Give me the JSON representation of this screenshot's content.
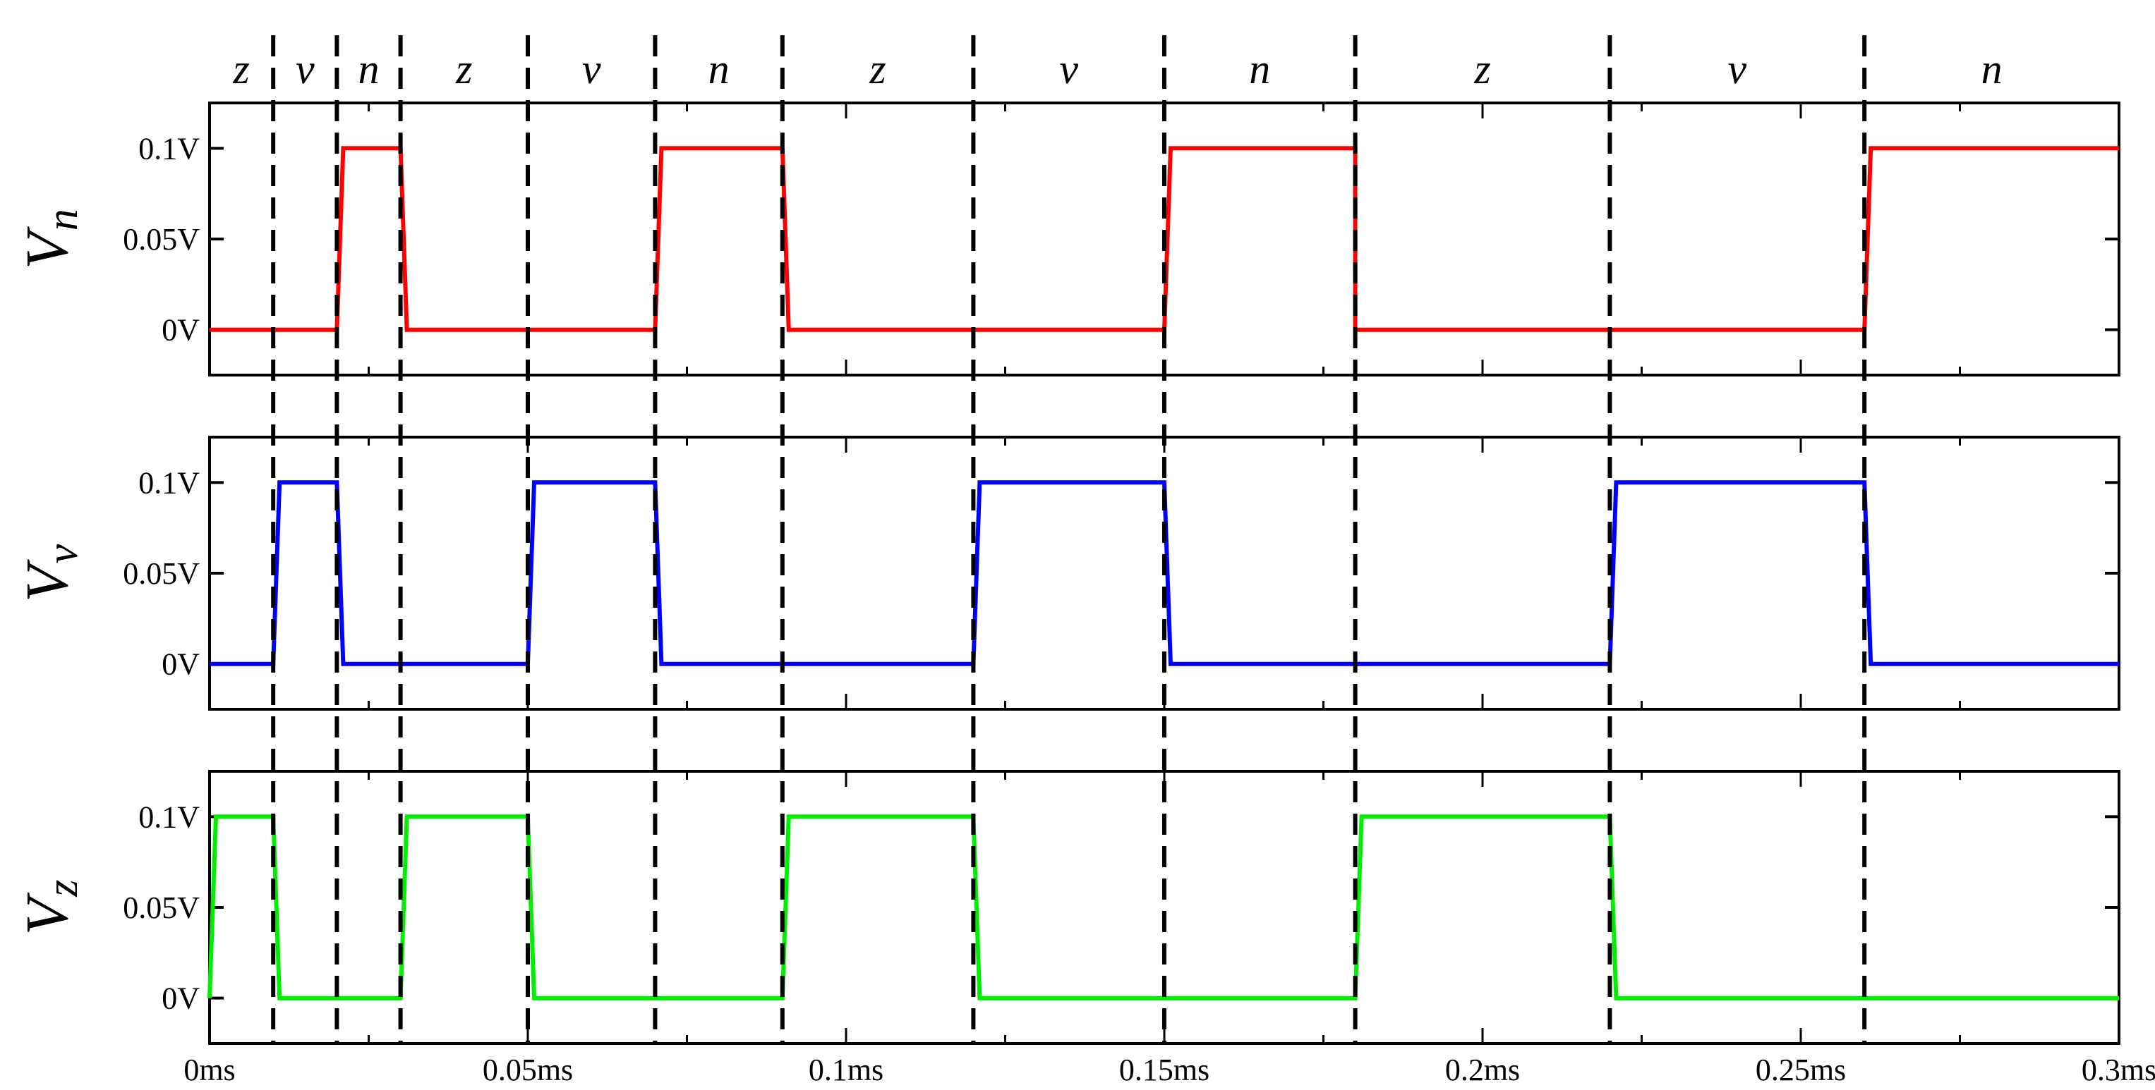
{
  "chart_data": {
    "type": "line",
    "x_unit": "ms",
    "xlim": [
      0,
      0.3
    ],
    "x_ticks": [
      {
        "value": 0,
        "label": "0ms"
      },
      {
        "value": 0.05,
        "label": "0.05ms"
      },
      {
        "value": 0.1,
        "label": "0.1ms"
      },
      {
        "value": 0.15,
        "label": "0.15ms"
      },
      {
        "value": 0.2,
        "label": "0.2ms"
      },
      {
        "value": 0.25,
        "label": "0.25ms"
      },
      {
        "value": 0.3,
        "label": "0.3ms"
      }
    ],
    "phase_boundaries": [
      0.01,
      0.02,
      0.03,
      0.05,
      0.07,
      0.09,
      0.12,
      0.15,
      0.18,
      0.22,
      0.26
    ],
    "phases": [
      {
        "label": "z",
        "start": 0,
        "end": 0.01
      },
      {
        "label": "v",
        "start": 0.01,
        "end": 0.02
      },
      {
        "label": "n",
        "start": 0.02,
        "end": 0.03
      },
      {
        "label": "z",
        "start": 0.03,
        "end": 0.05
      },
      {
        "label": "v",
        "start": 0.05,
        "end": 0.07
      },
      {
        "label": "n",
        "start": 0.07,
        "end": 0.09
      },
      {
        "label": "z",
        "start": 0.09,
        "end": 0.12
      },
      {
        "label": "v",
        "start": 0.12,
        "end": 0.15
      },
      {
        "label": "n",
        "start": 0.15,
        "end": 0.18
      },
      {
        "label": "z",
        "start": 0.18,
        "end": 0.22
      },
      {
        "label": "v",
        "start": 0.22,
        "end": 0.26
      },
      {
        "label": "n",
        "start": 0.26,
        "end": 0.3
      }
    ],
    "panels": [
      {
        "id": "vn",
        "ylabel_main": "V",
        "ylabel_sub": "n",
        "color": "#ff0000",
        "ylim": [
          -0.025,
          0.125
        ],
        "y_ticks": [
          {
            "value": 0,
            "label": "0V"
          },
          {
            "value": 0.05,
            "label": "0.05V"
          },
          {
            "value": 0.1,
            "label": "0.1V"
          }
        ],
        "x": [
          0,
          0.02,
          0.021,
          0.03,
          0.031,
          0.07,
          0.071,
          0.09,
          0.091,
          0.15,
          0.151,
          0.18,
          0.18,
          0.26,
          0.261,
          0.3
        ],
        "y": [
          0,
          0,
          0.1,
          0.1,
          0,
          0,
          0.1,
          0.1,
          0,
          0,
          0.1,
          0.1,
          0,
          0,
          0.1,
          0.1
        ]
      },
      {
        "id": "vv",
        "ylabel_main": "V",
        "ylabel_sub": "v",
        "color": "#0000ff",
        "ylim": [
          -0.025,
          0.125
        ],
        "y_ticks": [
          {
            "value": 0,
            "label": "0V"
          },
          {
            "value": 0.05,
            "label": "0.05V"
          },
          {
            "value": 0.1,
            "label": "0.1V"
          }
        ],
        "x": [
          0,
          0.01,
          0.011,
          0.02,
          0.021,
          0.05,
          0.051,
          0.07,
          0.071,
          0.12,
          0.121,
          0.15,
          0.151,
          0.22,
          0.221,
          0.26,
          0.261,
          0.3
        ],
        "y": [
          0,
          0,
          0.1,
          0.1,
          0,
          0,
          0.1,
          0.1,
          0,
          0,
          0.1,
          0.1,
          0,
          0,
          0.1,
          0.1,
          0,
          0
        ]
      },
      {
        "id": "vz",
        "ylabel_main": "V",
        "ylabel_sub": "z",
        "color": "#00ee00",
        "ylim": [
          -0.025,
          0.125
        ],
        "y_ticks": [
          {
            "value": 0,
            "label": "0V"
          },
          {
            "value": 0.05,
            "label": "0.05V"
          },
          {
            "value": 0.1,
            "label": "0.1V"
          }
        ],
        "x": [
          0,
          0.001,
          0.01,
          0.011,
          0.03,
          0.031,
          0.05,
          0.051,
          0.09,
          0.091,
          0.12,
          0.121,
          0.18,
          0.181,
          0.22,
          0.221,
          0.3
        ],
        "y": [
          0,
          0.1,
          0.1,
          0,
          0,
          0.1,
          0.1,
          0,
          0,
          0.1,
          0.1,
          0,
          0,
          0.1,
          0.1,
          0,
          0
        ]
      }
    ]
  }
}
